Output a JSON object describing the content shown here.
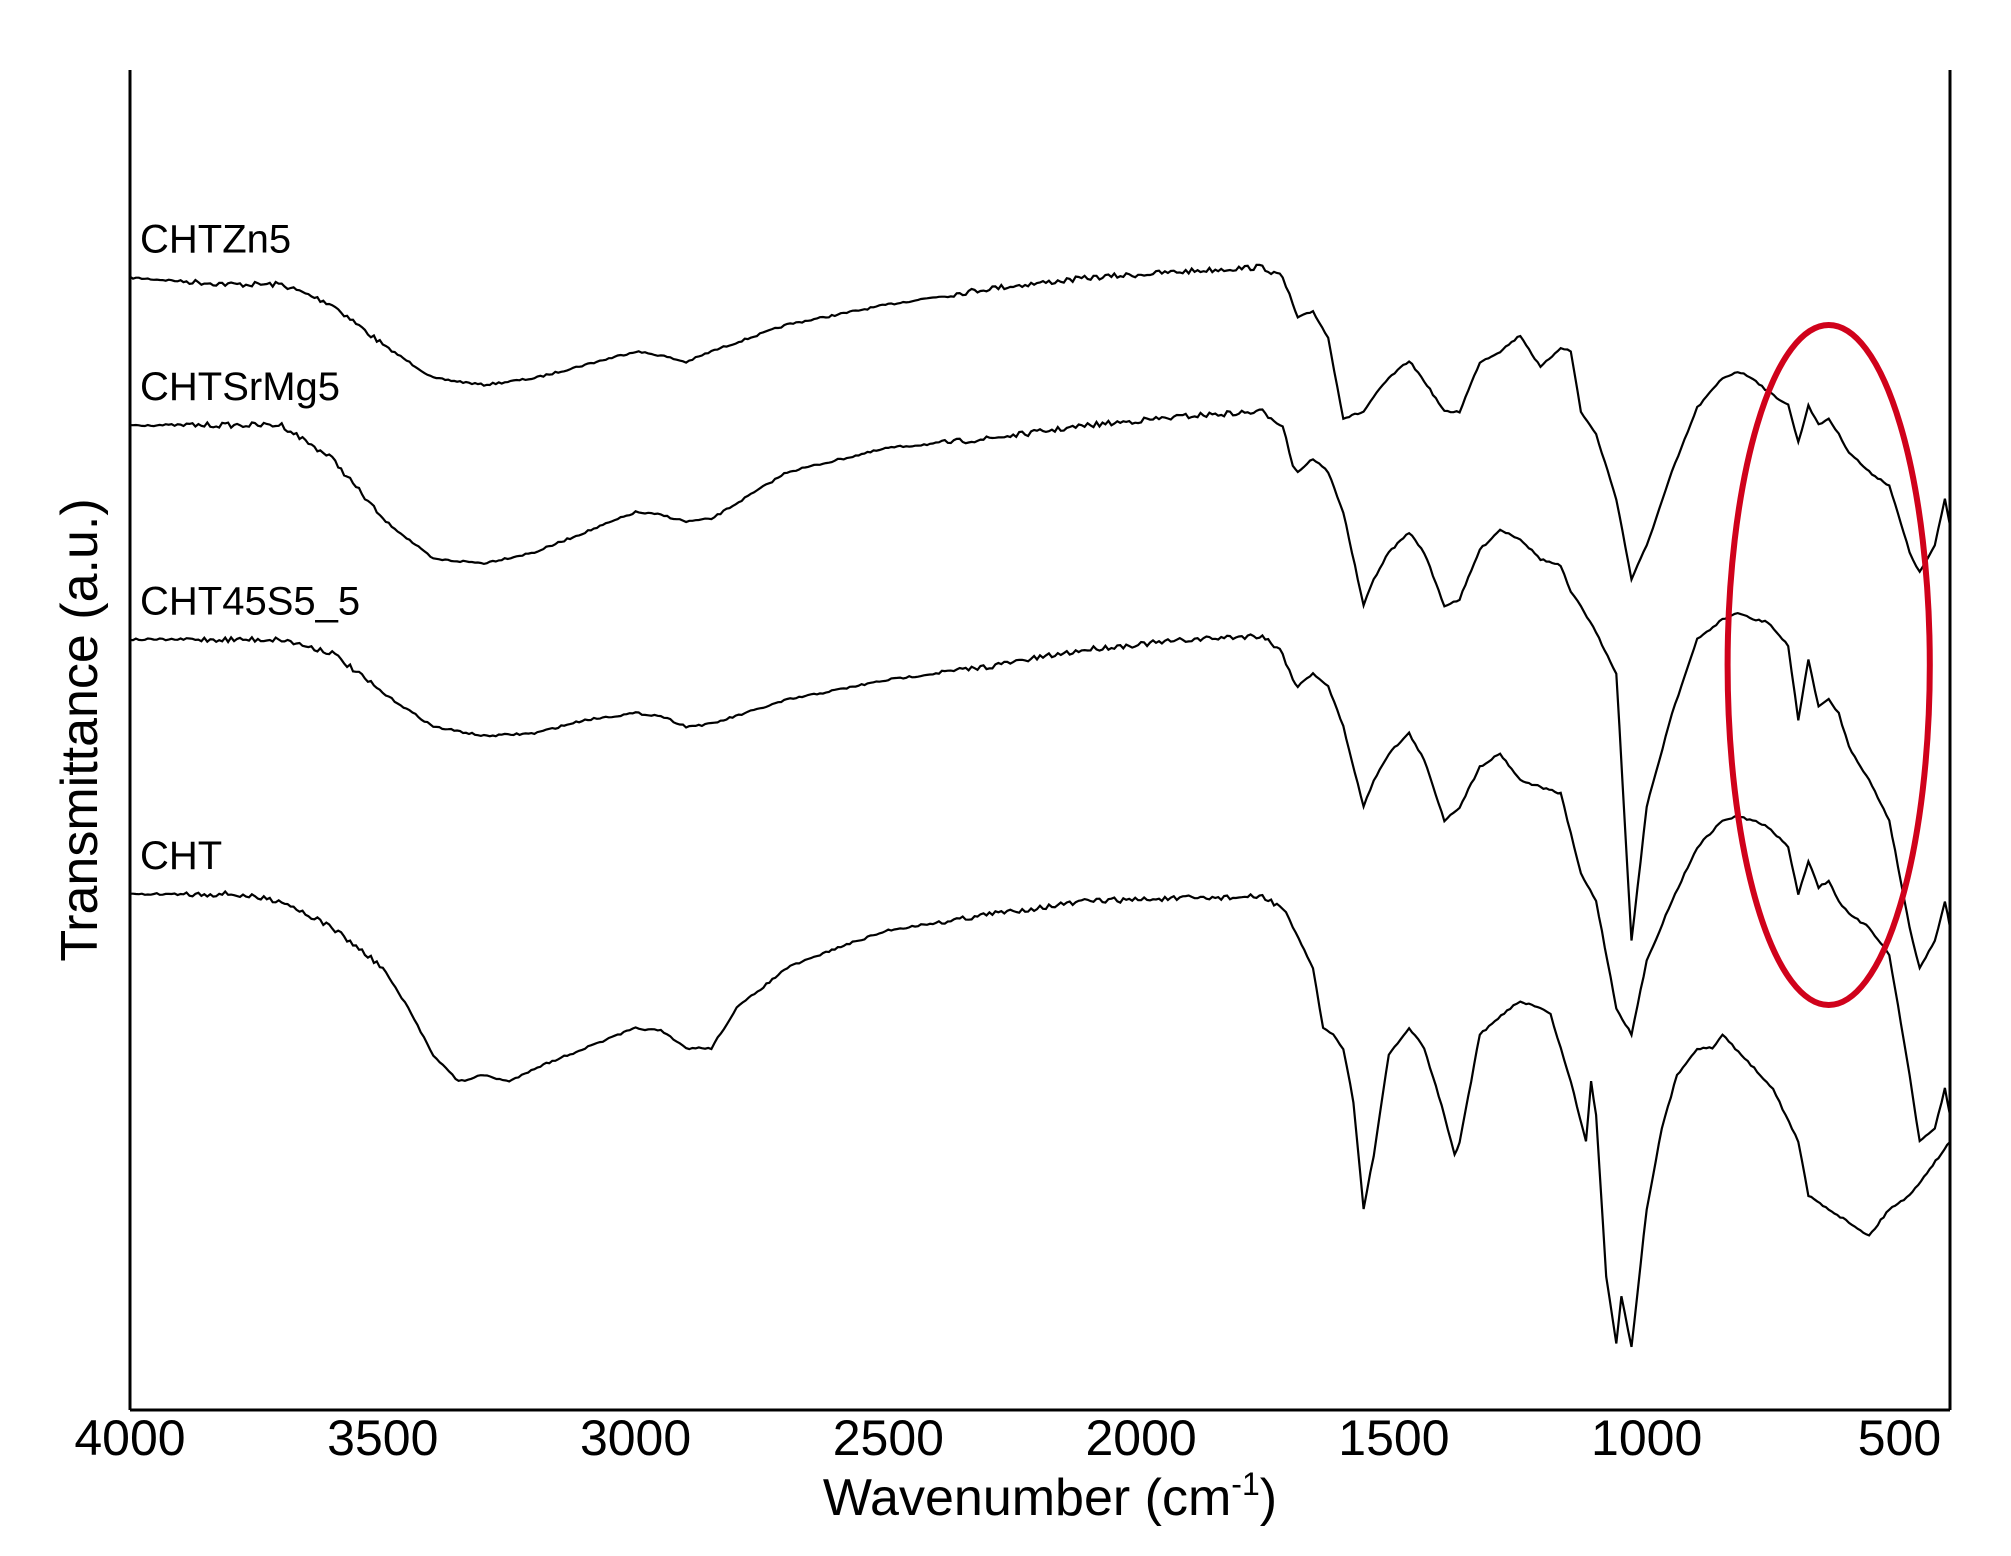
{
  "chart_data": {
    "type": "line",
    "xlabel": "Wavenumber (cm",
    "xlabel_sup": "-1",
    "xlabel_close": ")",
    "ylabel": "Transmittance (a.u.)",
    "xlim": [
      4000,
      400
    ],
    "x_reversed": true,
    "y_ticks_shown": false,
    "grid": false,
    "x_ticks": [
      {
        "value": 4000,
        "label": "4000"
      },
      {
        "value": 3500,
        "label": "3500"
      },
      {
        "value": 3000,
        "label": "3000"
      },
      {
        "value": 2500,
        "label": "2500"
      },
      {
        "value": 2000,
        "label": "2000"
      },
      {
        "value": 1500,
        "label": "1500"
      },
      {
        "value": 1000,
        "label": "1000"
      },
      {
        "value": 500,
        "label": "500"
      }
    ],
    "highlight": {
      "shape": "ellipse",
      "color": "#d0021b",
      "x_range": [
        840,
        440
      ],
      "series": [
        "CHTZn5",
        "CHTSrMg5",
        "CHT45S5_5"
      ]
    },
    "series": [
      {
        "name": "CHTZn5",
        "color": "#000000",
        "points": [
          [
            4000,
            0.845
          ],
          [
            3800,
            0.84
          ],
          [
            3700,
            0.84
          ],
          [
            3600,
            0.825
          ],
          [
            3500,
            0.795
          ],
          [
            3400,
            0.77
          ],
          [
            3300,
            0.765
          ],
          [
            3200,
            0.77
          ],
          [
            3100,
            0.78
          ],
          [
            3000,
            0.79
          ],
          [
            2950,
            0.787
          ],
          [
            2900,
            0.782
          ],
          [
            2850,
            0.79
          ],
          [
            2700,
            0.81
          ],
          [
            2500,
            0.825
          ],
          [
            2300,
            0.837
          ],
          [
            2100,
            0.845
          ],
          [
            1900,
            0.85
          ],
          [
            1760,
            0.853
          ],
          [
            1720,
            0.845
          ],
          [
            1700,
            0.825
          ],
          [
            1690,
            0.815
          ],
          [
            1660,
            0.82
          ],
          [
            1630,
            0.8
          ],
          [
            1600,
            0.74
          ],
          [
            1560,
            0.745
          ],
          [
            1540,
            0.756
          ],
          [
            1510,
            0.77
          ],
          [
            1470,
            0.783
          ],
          [
            1440,
            0.768
          ],
          [
            1400,
            0.745
          ],
          [
            1370,
            0.745
          ],
          [
            1330,
            0.782
          ],
          [
            1290,
            0.79
          ],
          [
            1250,
            0.802
          ],
          [
            1210,
            0.778
          ],
          [
            1170,
            0.793
          ],
          [
            1150,
            0.79
          ],
          [
            1130,
            0.745
          ],
          [
            1100,
            0.728
          ],
          [
            1060,
            0.68
          ],
          [
            1030,
            0.62
          ],
          [
            1000,
            0.645
          ],
          [
            950,
            0.7
          ],
          [
            900,
            0.748
          ],
          [
            850,
            0.77
          ],
          [
            820,
            0.775
          ],
          [
            790,
            0.77
          ],
          [
            760,
            0.76
          ],
          [
            720,
            0.75
          ],
          [
            700,
            0.722
          ],
          [
            680,
            0.75
          ],
          [
            660,
            0.735
          ],
          [
            640,
            0.74
          ],
          [
            620,
            0.728
          ],
          [
            600,
            0.715
          ],
          [
            560,
            0.7
          ],
          [
            520,
            0.69
          ],
          [
            480,
            0.64
          ],
          [
            460,
            0.625
          ],
          [
            430,
            0.645
          ],
          [
            410,
            0.68
          ],
          [
            400,
            0.66
          ]
        ]
      },
      {
        "name": "CHTSrMg5",
        "color": "#000000",
        "points": [
          [
            4000,
            0.735
          ],
          [
            3800,
            0.735
          ],
          [
            3700,
            0.735
          ],
          [
            3600,
            0.71
          ],
          [
            3500,
            0.665
          ],
          [
            3400,
            0.635
          ],
          [
            3300,
            0.632
          ],
          [
            3200,
            0.64
          ],
          [
            3100,
            0.655
          ],
          [
            3000,
            0.67
          ],
          [
            2950,
            0.668
          ],
          [
            2900,
            0.663
          ],
          [
            2850,
            0.665
          ],
          [
            2700,
            0.7
          ],
          [
            2500,
            0.718
          ],
          [
            2300,
            0.725
          ],
          [
            2100,
            0.735
          ],
          [
            1900,
            0.742
          ],
          [
            1760,
            0.745
          ],
          [
            1720,
            0.735
          ],
          [
            1700,
            0.705
          ],
          [
            1690,
            0.7
          ],
          [
            1660,
            0.71
          ],
          [
            1630,
            0.7
          ],
          [
            1600,
            0.67
          ],
          [
            1560,
            0.6
          ],
          [
            1540,
            0.62
          ],
          [
            1510,
            0.64
          ],
          [
            1470,
            0.655
          ],
          [
            1440,
            0.64
          ],
          [
            1400,
            0.6
          ],
          [
            1370,
            0.605
          ],
          [
            1330,
            0.642
          ],
          [
            1290,
            0.657
          ],
          [
            1250,
            0.65
          ],
          [
            1210,
            0.635
          ],
          [
            1170,
            0.63
          ],
          [
            1150,
            0.61
          ],
          [
            1130,
            0.6
          ],
          [
            1100,
            0.58
          ],
          [
            1060,
            0.55
          ],
          [
            1030,
            0.35
          ],
          [
            1000,
            0.45
          ],
          [
            950,
            0.52
          ],
          [
            900,
            0.575
          ],
          [
            850,
            0.59
          ],
          [
            820,
            0.595
          ],
          [
            790,
            0.59
          ],
          [
            760,
            0.588
          ],
          [
            720,
            0.57
          ],
          [
            700,
            0.515
          ],
          [
            680,
            0.56
          ],
          [
            660,
            0.525
          ],
          [
            640,
            0.53
          ],
          [
            620,
            0.52
          ],
          [
            600,
            0.495
          ],
          [
            560,
            0.47
          ],
          [
            520,
            0.44
          ],
          [
            480,
            0.36
          ],
          [
            460,
            0.33
          ],
          [
            430,
            0.35
          ],
          [
            410,
            0.38
          ],
          [
            400,
            0.36
          ]
        ]
      },
      {
        "name": "CHT45S5_5",
        "color": "#000000",
        "points": [
          [
            4000,
            0.575
          ],
          [
            3800,
            0.575
          ],
          [
            3700,
            0.575
          ],
          [
            3600,
            0.565
          ],
          [
            3500,
            0.535
          ],
          [
            3400,
            0.51
          ],
          [
            3300,
            0.503
          ],
          [
            3200,
            0.505
          ],
          [
            3100,
            0.515
          ],
          [
            3000,
            0.52
          ],
          [
            2950,
            0.518
          ],
          [
            2900,
            0.51
          ],
          [
            2850,
            0.512
          ],
          [
            2700,
            0.53
          ],
          [
            2500,
            0.545
          ],
          [
            2300,
            0.555
          ],
          [
            2100,
            0.568
          ],
          [
            1900,
            0.575
          ],
          [
            1760,
            0.578
          ],
          [
            1720,
            0.565
          ],
          [
            1700,
            0.545
          ],
          [
            1690,
            0.54
          ],
          [
            1660,
            0.55
          ],
          [
            1630,
            0.54
          ],
          [
            1600,
            0.51
          ],
          [
            1560,
            0.45
          ],
          [
            1540,
            0.47
          ],
          [
            1510,
            0.49
          ],
          [
            1470,
            0.505
          ],
          [
            1440,
            0.485
          ],
          [
            1400,
            0.44
          ],
          [
            1370,
            0.45
          ],
          [
            1330,
            0.48
          ],
          [
            1290,
            0.49
          ],
          [
            1250,
            0.47
          ],
          [
            1210,
            0.465
          ],
          [
            1170,
            0.46
          ],
          [
            1150,
            0.43
          ],
          [
            1130,
            0.4
          ],
          [
            1100,
            0.38
          ],
          [
            1060,
            0.3
          ],
          [
            1030,
            0.28
          ],
          [
            1000,
            0.335
          ],
          [
            950,
            0.38
          ],
          [
            900,
            0.42
          ],
          [
            850,
            0.44
          ],
          [
            820,
            0.443
          ],
          [
            790,
            0.44
          ],
          [
            760,
            0.435
          ],
          [
            720,
            0.42
          ],
          [
            700,
            0.385
          ],
          [
            680,
            0.41
          ],
          [
            660,
            0.39
          ],
          [
            640,
            0.395
          ],
          [
            620,
            0.38
          ],
          [
            600,
            0.37
          ],
          [
            560,
            0.36
          ],
          [
            520,
            0.34
          ],
          [
            480,
            0.25
          ],
          [
            460,
            0.2
          ],
          [
            430,
            0.21
          ],
          [
            410,
            0.24
          ],
          [
            400,
            0.22
          ]
        ]
      },
      {
        "name": "CHT",
        "color": "#000000",
        "points": [
          [
            4000,
            0.385
          ],
          [
            3800,
            0.385
          ],
          [
            3700,
            0.38
          ],
          [
            3600,
            0.36
          ],
          [
            3500,
            0.33
          ],
          [
            3450,
            0.3
          ],
          [
            3400,
            0.265
          ],
          [
            3350,
            0.245
          ],
          [
            3300,
            0.25
          ],
          [
            3250,
            0.245
          ],
          [
            3200,
            0.255
          ],
          [
            3100,
            0.27
          ],
          [
            3000,
            0.285
          ],
          [
            2950,
            0.283
          ],
          [
            2900,
            0.27
          ],
          [
            2850,
            0.27
          ],
          [
            2800,
            0.3
          ],
          [
            2700,
            0.33
          ],
          [
            2600,
            0.345
          ],
          [
            2500,
            0.358
          ],
          [
            2300,
            0.37
          ],
          [
            2100,
            0.38
          ],
          [
            1900,
            0.382
          ],
          [
            1760,
            0.383
          ],
          [
            1720,
            0.375
          ],
          [
            1700,
            0.36
          ],
          [
            1660,
            0.33
          ],
          [
            1640,
            0.285
          ],
          [
            1620,
            0.28
          ],
          [
            1600,
            0.27
          ],
          [
            1580,
            0.23
          ],
          [
            1560,
            0.15
          ],
          [
            1540,
            0.19
          ],
          [
            1510,
            0.265
          ],
          [
            1470,
            0.285
          ],
          [
            1440,
            0.27
          ],
          [
            1400,
            0.22
          ],
          [
            1380,
            0.19
          ],
          [
            1370,
            0.2
          ],
          [
            1330,
            0.28
          ],
          [
            1300,
            0.29
          ],
          [
            1270,
            0.3
          ],
          [
            1250,
            0.305
          ],
          [
            1210,
            0.3
          ],
          [
            1190,
            0.295
          ],
          [
            1170,
            0.27
          ],
          [
            1150,
            0.245
          ],
          [
            1120,
            0.2
          ],
          [
            1110,
            0.245
          ],
          [
            1100,
            0.22
          ],
          [
            1080,
            0.1
          ],
          [
            1060,
            0.05
          ],
          [
            1050,
            0.085
          ],
          [
            1030,
            0.047
          ],
          [
            1000,
            0.15
          ],
          [
            970,
            0.21
          ],
          [
            940,
            0.25
          ],
          [
            900,
            0.27
          ],
          [
            870,
            0.27
          ],
          [
            850,
            0.28
          ],
          [
            800,
            0.26
          ],
          [
            750,
            0.24
          ],
          [
            700,
            0.2
          ],
          [
            680,
            0.16
          ],
          [
            640,
            0.15
          ],
          [
            600,
            0.14
          ],
          [
            560,
            0.13
          ],
          [
            520,
            0.15
          ],
          [
            480,
            0.16
          ],
          [
            440,
            0.18
          ],
          [
            400,
            0.2
          ]
        ]
      }
    ]
  }
}
